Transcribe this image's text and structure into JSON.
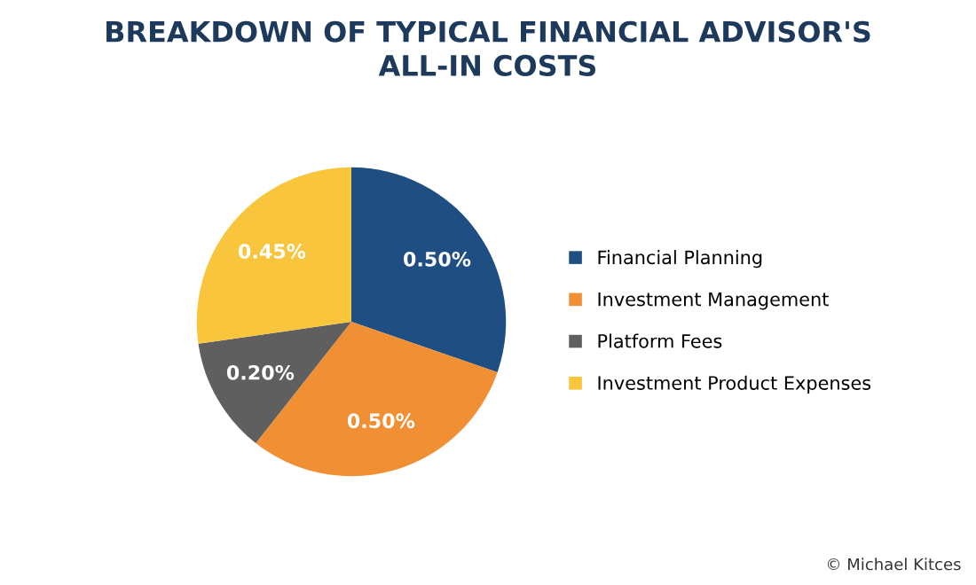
{
  "chart_data": {
    "type": "pie",
    "title": "BREAKDOWN OF TYPICAL FINANCIAL ADVISOR'S\nALL-IN COSTS",
    "categories": [
      "Financial Planning",
      "Investment Management",
      "Platform Fees",
      "Investment Product Expenses"
    ],
    "values": [
      0.5,
      0.5,
      0.2,
      0.45
    ],
    "value_labels": [
      "0.50%",
      "0.50%",
      "0.20%",
      "0.45%"
    ],
    "colors": [
      "#1f4e83",
      "#f08f33",
      "#5f5f5f",
      "#f8c53d"
    ],
    "legend": "right",
    "annotations": [
      "© Michael Kitces"
    ]
  }
}
